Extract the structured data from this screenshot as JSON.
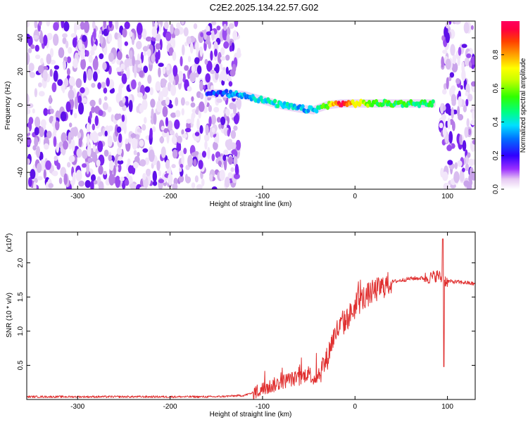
{
  "title": "C2E2.2025.134.22.57.G02",
  "colorbar": {
    "label": "Normalized spectral amplitude",
    "ticks": [
      0.0,
      0.2,
      0.4,
      0.6,
      0.8
    ],
    "tick_labels": [
      "0.0",
      "0.2",
      "0.4",
      "0.6",
      "0.8"
    ],
    "range": [
      0,
      1
    ]
  },
  "chart_data": [
    {
      "type": "heatmap",
      "title": "",
      "xlabel": "Height of straight line (km)",
      "ylabel": "Frequency (Hz)",
      "xlim": [
        -355,
        130
      ],
      "ylim": [
        -50,
        50
      ],
      "xticks": [
        -300,
        -200,
        -100,
        0,
        100
      ],
      "xtick_labels": [
        "-300",
        "-200",
        "-100",
        "0",
        "100"
      ],
      "yticks": [
        -40,
        -20,
        0,
        20,
        40
      ],
      "ytick_labels": [
        "-40",
        "-20",
        "0",
        "20",
        "40"
      ],
      "noise_regions_km": [
        [
          -355,
          -125
        ],
        [
          93,
          130
        ]
      ],
      "signal_track": {
        "x": [
          -160,
          -140,
          -120,
          -100,
          -80,
          -60,
          -45,
          -30,
          -15,
          0,
          20,
          40,
          60,
          80,
          85
        ],
        "y": [
          7,
          7,
          6,
          3,
          0,
          -2,
          -3,
          0,
          1,
          1,
          1,
          1,
          1,
          1,
          1
        ],
        "amplitude": [
          0.2,
          0.3,
          0.35,
          0.4,
          0.4,
          0.35,
          0.35,
          0.6,
          0.95,
          0.7,
          0.55,
          0.5,
          0.5,
          0.5,
          0.5
        ]
      }
    },
    {
      "type": "line",
      "title": "",
      "xlabel": "Height of straight line (km)",
      "ylabel": "SNR (10 * v/v)",
      "yscale_label": "(x10",
      "yscale_exponent": "4",
      "yscale_suffix": ")",
      "xlim": [
        -355,
        130
      ],
      "ylim": [
        0,
        2.45
      ],
      "xticks": [
        -300,
        -200,
        -100,
        0,
        100
      ],
      "xtick_labels": [
        "-300",
        "-200",
        "-100",
        "0",
        "100"
      ],
      "yticks": [
        0.5,
        1.0,
        1.5,
        2.0
      ],
      "ytick_labels": [
        "0.5",
        "1.0",
        "1.5",
        "2.0"
      ],
      "series": [
        {
          "color": "#e03030",
          "x": [
            -355,
            -300,
            -250,
            -200,
            -150,
            -120,
            -110,
            -100,
            -90,
            -80,
            -70,
            -60,
            -50,
            -45,
            -40,
            -30,
            -25,
            -20,
            -10,
            0,
            10,
            20,
            30,
            40,
            60,
            80,
            90,
            95,
            100,
            110,
            120,
            130
          ],
          "y": [
            0.04,
            0.04,
            0.04,
            0.04,
            0.04,
            0.06,
            0.1,
            0.15,
            0.2,
            0.25,
            0.3,
            0.3,
            0.4,
            0.3,
            0.35,
            0.6,
            0.85,
            1.0,
            1.15,
            1.35,
            1.5,
            1.58,
            1.65,
            1.72,
            1.77,
            1.78,
            1.82,
            1.75,
            1.73,
            1.72,
            1.71,
            1.69
          ]
        }
      ]
    }
  ]
}
